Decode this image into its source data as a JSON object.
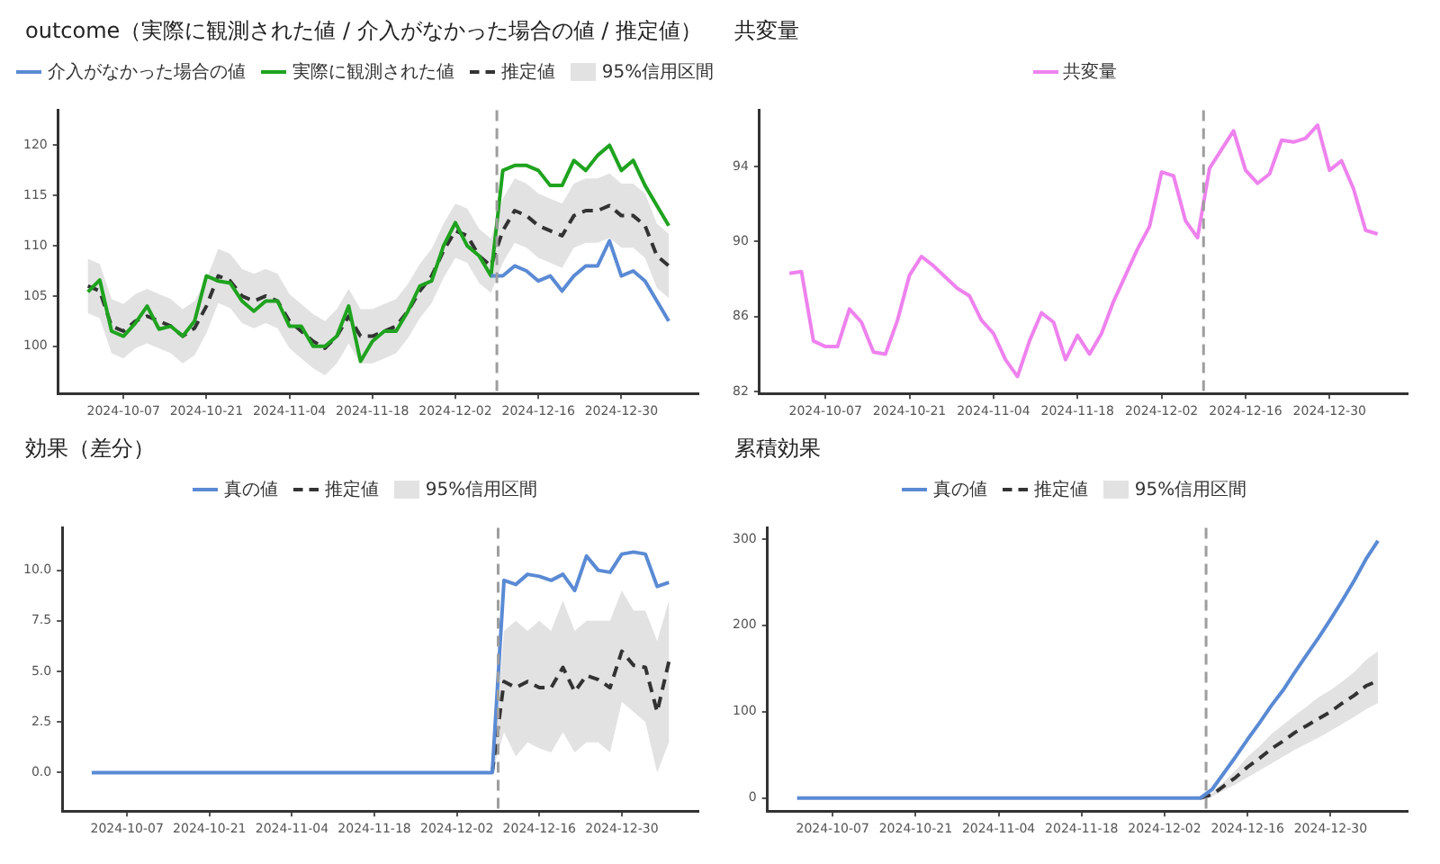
{
  "chart_data": [
    {
      "type": "line",
      "title": "outcome（実際に観測された値 / 介入がなかった場合の値 / 推定値）",
      "legend": "top",
      "grid": false,
      "annotations": [
        "95%信用区間"
      ],
      "x": [
        "2024-10-01",
        "2024-10-03",
        "2024-10-05",
        "2024-10-07",
        "2024-10-09",
        "2024-10-11",
        "2024-10-13",
        "2024-10-15",
        "2024-10-17",
        "2024-10-19",
        "2024-10-21",
        "2024-10-23",
        "2024-10-25",
        "2024-10-27",
        "2024-10-29",
        "2024-10-31",
        "2024-11-02",
        "2024-11-04",
        "2024-11-06",
        "2024-11-08",
        "2024-11-10",
        "2024-11-12",
        "2024-11-14",
        "2024-11-16",
        "2024-11-18",
        "2024-11-20",
        "2024-11-22",
        "2024-11-24",
        "2024-11-26",
        "2024-11-28",
        "2024-11-30",
        "2024-12-02",
        "2024-12-04",
        "2024-12-06",
        "2024-12-08",
        "2024-12-10",
        "2024-12-12",
        "2024-12-14",
        "2024-12-16",
        "2024-12-18",
        "2024-12-20",
        "2024-12-22",
        "2024-12-24",
        "2024-12-26",
        "2024-12-28",
        "2024-12-30",
        "2025-01-01",
        "2025-01-03",
        "2025-01-05",
        "2025-01-07"
      ],
      "xlim": [
        "2024-09-26",
        "2025-01-12"
      ],
      "xticks": [
        "2024-10-07",
        "2024-10-21",
        "2024-11-04",
        "2024-11-18",
        "2024-12-02",
        "2024-12-16",
        "2024-12-30"
      ],
      "ylim": [
        95.3,
        123.5
      ],
      "yticks": [
        100,
        105,
        110,
        115,
        120
      ],
      "ref_lines": [
        {
          "axis": "x",
          "value": "2024-12-09",
          "color": "#9e9e9e",
          "line_style": "dashed"
        }
      ],
      "series": [
        {
          "name": "介入がなかった場合の値",
          "color": "#5a8ad4",
          "values": [
            null,
            null,
            null,
            null,
            null,
            null,
            null,
            null,
            null,
            null,
            null,
            null,
            null,
            null,
            null,
            null,
            null,
            null,
            null,
            null,
            null,
            null,
            null,
            null,
            null,
            null,
            null,
            null,
            null,
            null,
            null,
            null,
            null,
            null,
            107,
            107,
            108,
            107.5,
            106.5,
            107,
            105.5,
            107,
            108,
            108,
            110.5,
            107,
            107.5,
            106.5,
            104.5,
            102.5
          ]
        },
        {
          "name": "実際に観測された値",
          "color": "#1fa31f",
          "values": [
            105.4,
            106.6,
            101.5,
            101.0,
            102.3,
            104,
            101.7,
            102.0,
            101.0,
            102.5,
            107,
            106.5,
            106.3,
            104.5,
            103.5,
            104.5,
            104.5,
            102,
            102,
            100,
            100,
            101,
            104,
            98.5,
            100.5,
            101.5,
            101.5,
            103.5,
            106,
            106.5,
            110,
            112.3,
            110,
            109,
            107,
            117.5,
            118,
            118,
            117.5,
            116,
            116,
            118.5,
            117.5,
            119,
            120,
            117.5,
            118.5,
            116,
            114,
            112
          ]
        },
        {
          "name": "推定値",
          "color": "#333333",
          "line_style": "dashed",
          "values": [
            106,
            105.5,
            102,
            101.5,
            102.5,
            103,
            102.5,
            102,
            101,
            101.8,
            104,
            107,
            106.5,
            105,
            104.5,
            105,
            104.5,
            102.5,
            101.5,
            100.5,
            99.8,
            101,
            103,
            101,
            101,
            101.5,
            102,
            103.5,
            105.5,
            107,
            109.5,
            111.5,
            111,
            109,
            108,
            111.5,
            113.5,
            113,
            112,
            111.5,
            111,
            113,
            113.5,
            113.5,
            114,
            113,
            113,
            112,
            109,
            108
          ],
          "lower": [
            103.3,
            102.8,
            99.3,
            98.8,
            99.8,
            100.3,
            99.8,
            99.3,
            98.3,
            99.1,
            101.3,
            104.3,
            103.8,
            102.3,
            101.8,
            102.3,
            101.8,
            99.8,
            98.8,
            97.8,
            97.1,
            98.3,
            100.3,
            98.3,
            98.3,
            98.8,
            99.3,
            100.8,
            102.8,
            104.3,
            106.8,
            108.8,
            108.3,
            106.3,
            105.3,
            108.3,
            110.3,
            109.8,
            108.8,
            108.3,
            107.8,
            109.8,
            110.3,
            110.3,
            110.8,
            109.8,
            109.8,
            108.8,
            105.8,
            104.8
          ],
          "upper": [
            108.7,
            108.2,
            104.7,
            104.2,
            105.2,
            105.7,
            105.2,
            104.7,
            103.7,
            104.5,
            106.7,
            109.7,
            109.2,
            107.7,
            107.2,
            107.7,
            107.2,
            105.2,
            104.2,
            103.2,
            102.5,
            103.7,
            105.7,
            103.7,
            103.7,
            104.2,
            104.7,
            106.2,
            108.2,
            109.7,
            112.2,
            114.2,
            113.7,
            111.7,
            110.7,
            114.7,
            116.7,
            116.2,
            115.2,
            114.7,
            114.2,
            116.2,
            116.7,
            116.7,
            117.2,
            116.2,
            116.2,
            115.2,
            112.2,
            111.2
          ]
        }
      ]
    },
    {
      "type": "line",
      "title": "共変量",
      "legend": "top",
      "grid": false,
      "x": [
        "2024-10-01",
        "2024-10-03",
        "2024-10-05",
        "2024-10-07",
        "2024-10-09",
        "2024-10-11",
        "2024-10-13",
        "2024-10-15",
        "2024-10-17",
        "2024-10-19",
        "2024-10-21",
        "2024-10-23",
        "2024-10-25",
        "2024-10-27",
        "2024-10-29",
        "2024-10-31",
        "2024-11-02",
        "2024-11-04",
        "2024-11-06",
        "2024-11-08",
        "2024-11-10",
        "2024-11-12",
        "2024-11-14",
        "2024-11-16",
        "2024-11-18",
        "2024-11-20",
        "2024-11-22",
        "2024-11-24",
        "2024-11-26",
        "2024-11-28",
        "2024-11-30",
        "2024-12-02",
        "2024-12-04",
        "2024-12-06",
        "2024-12-08",
        "2024-12-10",
        "2024-12-12",
        "2024-12-14",
        "2024-12-16",
        "2024-12-18",
        "2024-12-20",
        "2024-12-22",
        "2024-12-24",
        "2024-12-26",
        "2024-12-28",
        "2024-12-30",
        "2025-01-01",
        "2025-01-03",
        "2025-01-05",
        "2025-01-07"
      ],
      "xlim": [
        "2024-09-26",
        "2025-01-12"
      ],
      "xticks": [
        "2024-10-07",
        "2024-10-21",
        "2024-11-04",
        "2024-11-18",
        "2024-12-02",
        "2024-12-16",
        "2024-12-30"
      ],
      "ylim": [
        81.9,
        97
      ],
      "yticks": [
        82,
        86,
        90,
        94
      ],
      "ref_lines": [
        {
          "axis": "x",
          "value": "2024-12-09",
          "color": "#9e9e9e",
          "line_style": "dashed"
        }
      ],
      "series": [
        {
          "name": "共変量",
          "color": "#ee82ee",
          "values": [
            88.3,
            88.4,
            84.7,
            84.4,
            84.4,
            86.4,
            85.7,
            84.1,
            84.0,
            85.8,
            88.2,
            89.2,
            88.7,
            88.1,
            87.5,
            87.1,
            85.8,
            85.1,
            83.7,
            82.8,
            84.7,
            86.2,
            85.7,
            83.7,
            85.0,
            84.0,
            85.1,
            86.8,
            88.2,
            89.6,
            90.8,
            93.7,
            93.5,
            91.1,
            90.2,
            93.9,
            94.9,
            95.9,
            93.8,
            93.1,
            93.6,
            95.4,
            95.3,
            95.5,
            96.2,
            93.8,
            94.3,
            92.8,
            90.6,
            90.4
          ]
        }
      ]
    },
    {
      "type": "line",
      "title": "効果（差分）",
      "legend": "top",
      "grid": false,
      "annotations": [
        "95%信用区間"
      ],
      "x": [
        "2024-10-01",
        "2024-10-03",
        "2024-10-05",
        "2024-10-07",
        "2024-10-09",
        "2024-10-11",
        "2024-10-13",
        "2024-10-15",
        "2024-10-17",
        "2024-10-19",
        "2024-10-21",
        "2024-10-23",
        "2024-10-25",
        "2024-10-27",
        "2024-10-29",
        "2024-10-31",
        "2024-11-02",
        "2024-11-04",
        "2024-11-06",
        "2024-11-08",
        "2024-11-10",
        "2024-11-12",
        "2024-11-14",
        "2024-11-16",
        "2024-11-18",
        "2024-11-20",
        "2024-11-22",
        "2024-11-24",
        "2024-11-26",
        "2024-11-28",
        "2024-11-30",
        "2024-12-02",
        "2024-12-04",
        "2024-12-06",
        "2024-12-08",
        "2024-12-10",
        "2024-12-12",
        "2024-12-14",
        "2024-12-16",
        "2024-12-18",
        "2024-12-20",
        "2024-12-22",
        "2024-12-24",
        "2024-12-26",
        "2024-12-28",
        "2024-12-30",
        "2025-01-01",
        "2025-01-03",
        "2025-01-05",
        "2025-01-07"
      ],
      "xlim": [
        "2024-09-26",
        "2025-01-12"
      ],
      "xticks": [
        "2024-10-07",
        "2024-10-21",
        "2024-11-04",
        "2024-11-18",
        "2024-12-02",
        "2024-12-16",
        "2024-12-30"
      ],
      "ylim": [
        -1.9,
        12.1
      ],
      "yticks": [
        {
          "value": 0,
          "label": "0.0"
        },
        {
          "value": 2.5,
          "label": "2.5"
        },
        {
          "value": 5,
          "label": "5.0"
        },
        {
          "value": 7.5,
          "label": "7.5"
        },
        {
          "value": 10,
          "label": "10.0"
        }
      ],
      "ref_lines": [
        {
          "axis": "x",
          "value": "2024-12-09",
          "color": "#9e9e9e",
          "line_style": "dashed"
        }
      ],
      "series": [
        {
          "name": "真の値",
          "color": "#5a8ad4",
          "values": [
            0,
            0,
            0,
            0,
            0,
            0,
            0,
            0,
            0,
            0,
            0,
            0,
            0,
            0,
            0,
            0,
            0,
            0,
            0,
            0,
            0,
            0,
            0,
            0,
            0,
            0,
            0,
            0,
            0,
            0,
            0,
            0,
            0,
            0,
            0,
            9.5,
            9.3,
            9.8,
            9.7,
            9.5,
            9.8,
            9.0,
            10.7,
            10.0,
            9.9,
            10.8,
            10.9,
            10.8,
            9.2,
            9.4
          ]
        },
        {
          "name": "推定値",
          "color": "#333333",
          "line_style": "dashed",
          "values": [
            null,
            null,
            null,
            null,
            null,
            null,
            null,
            null,
            null,
            null,
            null,
            null,
            null,
            null,
            null,
            null,
            null,
            null,
            null,
            null,
            null,
            null,
            null,
            null,
            null,
            null,
            null,
            null,
            null,
            null,
            null,
            null,
            null,
            null,
            0,
            4.5,
            4.2,
            4.5,
            4.2,
            4.2,
            5.2,
            4.0,
            4.8,
            4.6,
            4.2,
            6.0,
            5.3,
            5.2,
            3.0,
            5.5
          ],
          "lower": [
            null,
            null,
            null,
            null,
            null,
            null,
            null,
            null,
            null,
            null,
            null,
            null,
            null,
            null,
            null,
            null,
            null,
            null,
            null,
            null,
            null,
            null,
            null,
            null,
            null,
            null,
            null,
            null,
            null,
            null,
            null,
            null,
            null,
            null,
            0,
            2.0,
            0.8,
            1.5,
            1.2,
            1.0,
            2.0,
            1.0,
            1.5,
            1.5,
            1.0,
            3.5,
            3.0,
            2.5,
            0,
            1.5
          ],
          "upper": [
            null,
            null,
            null,
            null,
            null,
            null,
            null,
            null,
            null,
            null,
            null,
            null,
            null,
            null,
            null,
            null,
            null,
            null,
            null,
            null,
            null,
            null,
            null,
            null,
            null,
            null,
            null,
            null,
            null,
            null,
            null,
            null,
            null,
            null,
            0,
            7.0,
            7.5,
            7.0,
            7.5,
            7.0,
            8.5,
            7.0,
            7.5,
            7.5,
            7.5,
            9.0,
            8.0,
            8.0,
            6.5,
            8.5
          ]
        }
      ]
    },
    {
      "type": "line",
      "title": "累積効果",
      "legend": "top",
      "grid": false,
      "annotations": [
        "95%信用区間"
      ],
      "x": [
        "2024-10-01",
        "2024-10-03",
        "2024-10-05",
        "2024-10-07",
        "2024-10-09",
        "2024-10-11",
        "2024-10-13",
        "2024-10-15",
        "2024-10-17",
        "2024-10-19",
        "2024-10-21",
        "2024-10-23",
        "2024-10-25",
        "2024-10-27",
        "2024-10-29",
        "2024-10-31",
        "2024-11-02",
        "2024-11-04",
        "2024-11-06",
        "2024-11-08",
        "2024-11-10",
        "2024-11-12",
        "2024-11-14",
        "2024-11-16",
        "2024-11-18",
        "2024-11-20",
        "2024-11-22",
        "2024-11-24",
        "2024-11-26",
        "2024-11-28",
        "2024-11-30",
        "2024-12-02",
        "2024-12-04",
        "2024-12-06",
        "2024-12-08",
        "2024-12-10",
        "2024-12-12",
        "2024-12-14",
        "2024-12-16",
        "2024-12-18",
        "2024-12-20",
        "2024-12-22",
        "2024-12-24",
        "2024-12-26",
        "2024-12-28",
        "2024-12-30",
        "2025-01-01",
        "2025-01-03",
        "2025-01-05",
        "2025-01-07"
      ],
      "xlim": [
        "2024-09-26",
        "2025-01-12"
      ],
      "xticks": [
        "2024-10-07",
        "2024-10-21",
        "2024-11-04",
        "2024-11-18",
        "2024-12-02",
        "2024-12-16",
        "2024-12-30"
      ],
      "ylim": [
        -15,
        313
      ],
      "yticks": [
        0,
        100,
        200,
        300
      ],
      "ref_lines": [
        {
          "axis": "x",
          "value": "2024-12-09",
          "color": "#9e9e9e",
          "line_style": "dashed"
        }
      ],
      "series": [
        {
          "name": "真の値",
          "color": "#5a8ad4",
          "values": [
            0,
            0,
            0,
            0,
            0,
            0,
            0,
            0,
            0,
            0,
            0,
            0,
            0,
            0,
            0,
            0,
            0,
            0,
            0,
            0,
            0,
            0,
            0,
            0,
            0,
            0,
            0,
            0,
            0,
            0,
            0,
            0,
            0,
            0,
            0,
            10,
            29,
            48,
            68,
            87,
            107,
            125,
            146,
            166,
            186,
            207,
            229,
            252,
            277,
            298
          ]
        },
        {
          "name": "推定値",
          "color": "#333333",
          "line_style": "dashed",
          "values": [
            null,
            null,
            null,
            null,
            null,
            null,
            null,
            null,
            null,
            null,
            null,
            null,
            null,
            null,
            null,
            null,
            null,
            null,
            null,
            null,
            null,
            null,
            null,
            null,
            null,
            null,
            null,
            null,
            null,
            null,
            null,
            null,
            null,
            null,
            0,
            4,
            14,
            24,
            36,
            46,
            57,
            66,
            76,
            84,
            92,
            100,
            110,
            119,
            130,
            136
          ],
          "lower": [
            null,
            null,
            null,
            null,
            null,
            null,
            null,
            null,
            null,
            null,
            null,
            null,
            null,
            null,
            null,
            null,
            null,
            null,
            null,
            null,
            null,
            null,
            null,
            null,
            null,
            null,
            null,
            null,
            null,
            null,
            null,
            null,
            null,
            null,
            0,
            2,
            9,
            16,
            24,
            32,
            40,
            48,
            56,
            63,
            70,
            78,
            86,
            94,
            103,
            110
          ],
          "upper": [
            null,
            null,
            null,
            null,
            null,
            null,
            null,
            null,
            null,
            null,
            null,
            null,
            null,
            null,
            null,
            null,
            null,
            null,
            null,
            null,
            null,
            null,
            null,
            null,
            null,
            null,
            null,
            null,
            null,
            null,
            null,
            null,
            null,
            null,
            0,
            6,
            19,
            32,
            48,
            60,
            74,
            85,
            96,
            106,
            117,
            125,
            135,
            146,
            160,
            170
          ]
        }
      ]
    }
  ]
}
